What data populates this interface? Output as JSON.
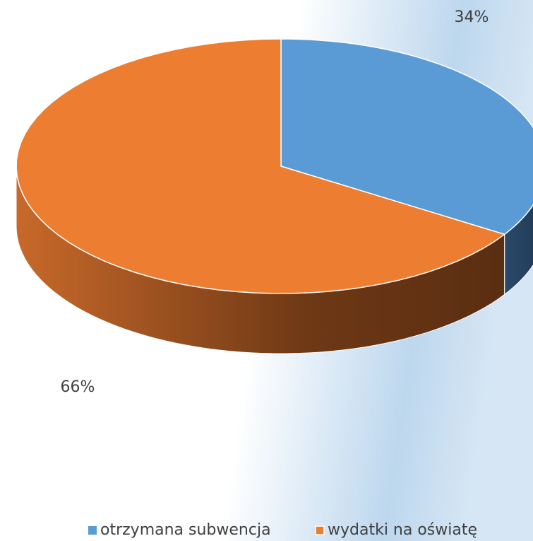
{
  "chart_data": {
    "type": "pie3d",
    "categories": [
      "otrzymana subwencja",
      "wydatki na oświatę"
    ],
    "values": [
      34,
      66
    ],
    "value_labels": [
      "34%",
      "66%"
    ],
    "colors": [
      "#5b9bd5",
      "#ed7d31"
    ],
    "legend": "bottom"
  }
}
